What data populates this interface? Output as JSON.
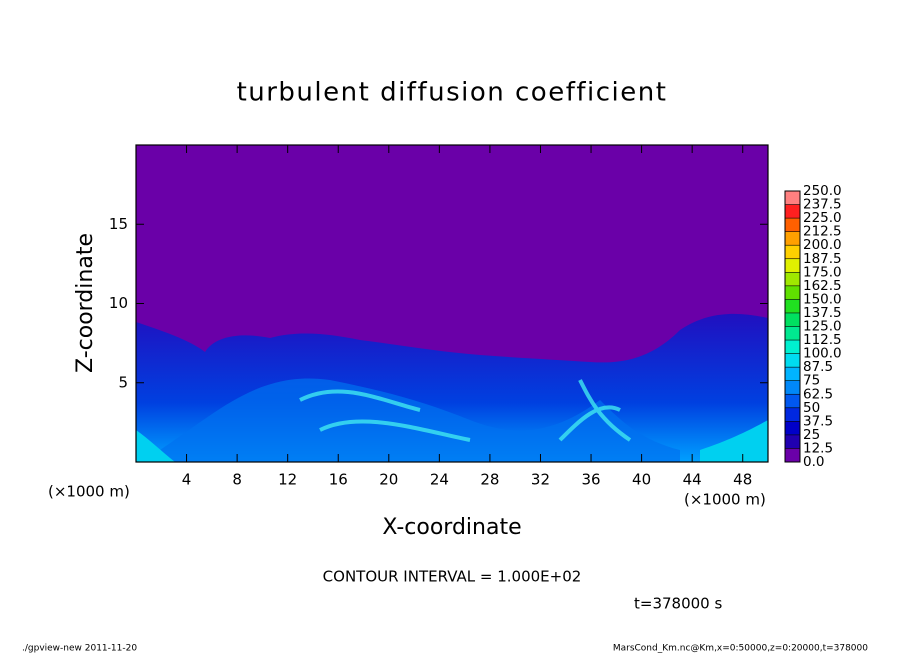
{
  "chart_data": {
    "type": "contour",
    "title": "turbulent diffusion coefficient",
    "xlabel": "X-coordinate",
    "ylabel": "Z-coordinate",
    "x_unit_label": "(×1000 m)",
    "y_unit_label": "(×1000 m)",
    "xlim": [
      0,
      50
    ],
    "ylim": [
      0,
      20
    ],
    "xticks": [
      4,
      8,
      12,
      16,
      20,
      24,
      28,
      32,
      36,
      40,
      44,
      48
    ],
    "yticks": [
      5,
      10,
      15
    ],
    "field_color": "#6a00a8",
    "colorbar": {
      "levels": [
        {
          "value": 0,
          "label": "0.0"
        },
        12.5,
        25,
        37.5,
        50,
        62.5,
        75,
        87.5,
        {
          "value": 100,
          "label": "100.0"
        },
        112.5,
        {
          "value": 125,
          "label": "125.0"
        },
        137.5,
        {
          "value": 150,
          "label": "150.0"
        },
        162.5,
        {
          "value": 175,
          "label": "175.0"
        },
        187.5,
        {
          "value": 200,
          "label": "200.0"
        },
        212.5,
        {
          "value": 225,
          "label": "225.0"
        },
        237.5,
        {
          "value": 250,
          "label": "250.0"
        }
      ],
      "colors": [
        "#6a00a8",
        "#2000b0",
        "#0000c8",
        "#0028e0",
        "#0058f0",
        "#0088f8",
        "#00b4ff",
        "#00dcf0",
        "#00f0d0",
        "#00e890",
        "#00e060",
        "#20e020",
        "#60e000",
        "#a0e800",
        "#e0f000",
        "#ffd000",
        "#ffa000",
        "#ff6000",
        "#ff2020",
        "#ff8080"
      ]
    },
    "contour_interval": "CONTOUR INTERVAL = 1.000E+02",
    "time_label": "t=378000 s",
    "footer_left": "./gpview-new  2011-11-20",
    "footer_right": "MarsCond_Km.nc@Km,x=0:50000,z=0:20000,t=378000"
  }
}
